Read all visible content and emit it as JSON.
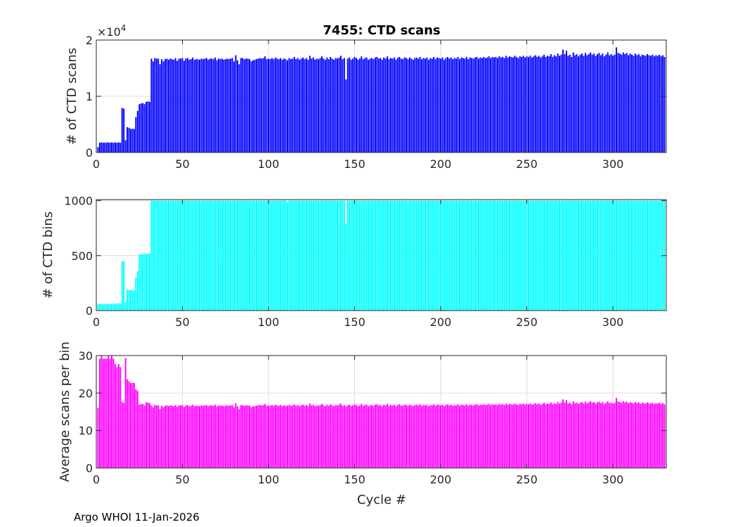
{
  "footer": "Argo WHOI 11-Jan-2026",
  "chart_data": {
    "type": "bar",
    "title": "7455: CTD scans",
    "xlabel": "Cycle #",
    "xlim": [
      0,
      331
    ],
    "xticks": [
      0,
      50,
      100,
      150,
      200,
      250,
      300
    ],
    "grid": true,
    "cycle_start": 1,
    "scans": [
      960,
      1750,
      1800,
      1750,
      1750,
      1750,
      1800,
      1750,
      1800,
      1750,
      1800,
      1750,
      1800,
      1750,
      7900,
      7800,
      2200,
      4500,
      4400,
      4200,
      4200,
      4200,
      6300,
      7400,
      8600,
      8700,
      8800,
      8600,
      9000,
      9100,
      9000,
      16700,
      16200,
      16800,
      16700,
      16700,
      15700,
      16600,
      16200,
      16600,
      16700,
      16500,
      16700,
      16600,
      16500,
      16800,
      16300,
      16700,
      16700,
      16800,
      16300,
      16700,
      16800,
      16500,
      16600,
      16900,
      16500,
      16600,
      16600,
      16500,
      16700,
      16600,
      16700,
      16800,
      16500,
      16700,
      16700,
      16600,
      16900,
      16400,
      16700,
      16600,
      16700,
      16500,
      16600,
      16700,
      16600,
      16700,
      16800,
      16200,
      17300,
      16400,
      15700,
      16800,
      16800,
      16600,
      16700,
      16700,
      16600,
      16200,
      16400,
      16500,
      16600,
      16700,
      16800,
      16700,
      16800,
      17100,
      16600,
      16700,
      16600,
      16800,
      16600,
      16900,
      16700,
      16600,
      16800,
      16500,
      16700,
      16600,
      16400,
      16800,
      16600,
      16700,
      17000,
      16600,
      16800,
      16500,
      16700,
      16900,
      16600,
      16800,
      16500,
      17200,
      16700,
      16900,
      16500,
      16700,
      16600,
      16800,
      17100,
      16700,
      16500,
      16900,
      16600,
      17000,
      16700,
      16500,
      16800,
      16700,
      16900,
      17200,
      16600,
      16800,
      13000,
      16700,
      16900,
      16500,
      16700,
      17000,
      16800,
      16500,
      16700,
      17100,
      16600,
      16800,
      16900,
      16500,
      16700,
      16800,
      16600,
      16900,
      17000,
      16700,
      16800,
      16500,
      16900,
      16700,
      17100,
      16600,
      16800,
      16700,
      16900,
      16500,
      16800,
      17000,
      16700,
      16600,
      16900,
      16800,
      16600,
      16900,
      16700,
      16500,
      16800,
      16900,
      16700,
      17000,
      16600,
      16800,
      16700,
      16900,
      16500,
      16800,
      16700,
      17000,
      16600,
      16900,
      16800,
      16700,
      16900,
      16500,
      16800,
      17000,
      16700,
      16900,
      16600,
      16800,
      16700,
      17000,
      16600,
      16900,
      16800,
      16700,
      17000,
      16600,
      16900,
      16800,
      16700,
      16900,
      17000,
      16700,
      16900,
      16800,
      17000,
      16800,
      16900,
      17100,
      16800,
      17000,
      16900,
      17000,
      16800,
      17100,
      16900,
      17000,
      16800,
      17200,
      16900,
      17100,
      17000,
      16900,
      17200,
      17000,
      16800,
      17100,
      17000,
      17200,
      16900,
      17100,
      17000,
      17200,
      16900,
      17100,
      17300,
      17000,
      17200,
      16900,
      17100,
      17400,
      17000,
      17200,
      17100,
      17500,
      17000,
      17300,
      17100,
      17600,
      17200,
      17400,
      18300,
      17500,
      18100,
      17200,
      17400,
      17000,
      17800,
      17300,
      17500,
      17100,
      17400,
      17600,
      17200,
      17700,
      17300,
      17500,
      17800,
      17400,
      17600,
      17200,
      17500,
      17700,
      17300,
      17600,
      17100,
      17400,
      17800,
      17300,
      17500,
      17200,
      17400,
      18700,
      17700,
      17600,
      17400,
      17800,
      17500,
      17700,
      17300,
      17600,
      17400,
      17200,
      17600,
      17300,
      17500,
      17100,
      17400,
      17300,
      17200,
      17500,
      17300,
      17200,
      17400,
      17100,
      17300,
      17200,
      17400,
      17100,
      17300,
      17000
    ],
    "bins_early": [
      60,
      60,
      60,
      60,
      60,
      60,
      60,
      60,
      60,
      60,
      65,
      65,
      65,
      65,
      450,
      450,
      75,
      190,
      190,
      185,
      185,
      185,
      300,
      360,
      510,
      510,
      515,
      515,
      515,
      520,
      520
    ],
    "bins_default_after": 1000,
    "bins_exceptions": {
      "111": 985,
      "145": 790
    },
    "panels": [
      {
        "series": "scans",
        "ylabel": "# of CTD scans",
        "ylim": [
          0,
          20000
        ],
        "yticks": [
          0,
          10000,
          20000
        ],
        "yticklabels": [
          "0",
          "1",
          "2"
        ],
        "exponent_label": "×10",
        "exponent": "4",
        "color": "#0000ff"
      },
      {
        "series": "bins",
        "ylabel": "# of CTD bins",
        "ylim": [
          0,
          1010
        ],
        "yticks": [
          0,
          500,
          1000
        ],
        "yticklabels": [
          "0",
          "500",
          "1000"
        ],
        "color": "#00ffff"
      },
      {
        "series": "avg",
        "ylabel": "Average scans per bin",
        "ylim": [
          0,
          30
        ],
        "yticks": [
          0,
          10,
          20,
          30
        ],
        "yticklabels": [
          "0",
          "10",
          "20",
          "30"
        ],
        "color": "#ff00ff"
      }
    ]
  }
}
